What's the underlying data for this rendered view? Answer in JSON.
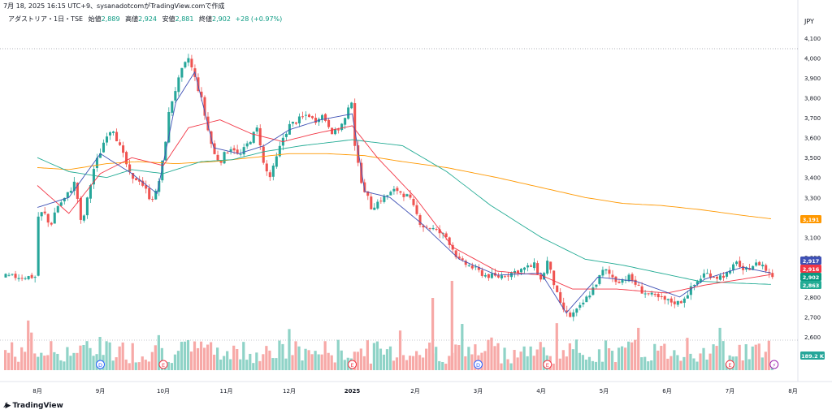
{
  "header": {
    "text": "7月 18, 2025 16:15 UTC+9、sysanadotcomがTradingView.comで作成"
  },
  "legend": {
    "symbol": "アダストリア・1日・TSE",
    "open_label": "始値",
    "open": "2,889",
    "high_label": "高値",
    "high": "2,924",
    "low_label": "安値",
    "low": "2,881",
    "close_label": "終値",
    "close": "2,902",
    "change": "+28 (+0.97%)"
  },
  "currency": "JPY",
  "brand": "TradingView",
  "colors": {
    "up": "#26a69a",
    "down": "#ef5350",
    "ma_short": "#3f51b5",
    "ma_mid": "#f23645",
    "ma_long": "#22ab94",
    "ma_xl": "#ff9800"
  },
  "chart_data": {
    "type": "candlestick",
    "yaxis_ticks": [
      "4,100",
      "4,000",
      "3,900",
      "3,800",
      "3,700",
      "3,600",
      "3,500",
      "3,400",
      "3,300",
      "3,200",
      "3,100",
      "3,000",
      "2,900",
      "2,800",
      "2,700",
      "2,600"
    ],
    "ylim": [
      2590,
      4115
    ],
    "xaxis_labels": [
      "8月",
      "9月",
      "10月",
      "11月",
      "12月",
      "2025",
      "2月",
      "3月",
      "4月",
      "5月",
      "6月",
      "7月",
      "8月"
    ],
    "price_tags": [
      {
        "label": "3,191",
        "color": "#ff9800",
        "value": 3191
      },
      {
        "label": "2,917",
        "color": "#3f51b5",
        "value": 2917
      },
      {
        "label": "2,916",
        "color": "#f23645",
        "value": 2916
      },
      {
        "label": "2,902",
        "color": "#089981",
        "value": 2902
      },
      {
        "label": "2,863",
        "color": "#22ab94",
        "value": 2863
      }
    ],
    "volume_tag": "189.2 K",
    "dotted_high_line": 4055,
    "event_markers": [
      {
        "x_label_index": 1.0,
        "kind": "D"
      },
      {
        "x_label_index": 2.0,
        "kind": "E"
      },
      {
        "x_label_index": 5.0,
        "kind": "E"
      },
      {
        "x_label_index": 7.0,
        "kind": "D"
      },
      {
        "x_label_index": 8.1,
        "kind": "E"
      },
      {
        "x_label_index": 11.0,
        "kind": "E"
      },
      {
        "x_label_index": 11.7,
        "kind": "⚡"
      }
    ],
    "price_path": [
      [
        0,
        3200
      ],
      [
        0.1,
        3230
      ],
      [
        0.2,
        3150
      ],
      [
        0.3,
        3250
      ],
      [
        0.45,
        3300
      ],
      [
        0.6,
        3380
      ],
      [
        0.7,
        3150
      ],
      [
        0.8,
        3300
      ],
      [
        0.9,
        3450
      ],
      [
        1.0,
        3530
      ],
      [
        1.1,
        3620
      ],
      [
        1.2,
        3650
      ],
      [
        1.3,
        3560
      ],
      [
        1.4,
        3480
      ],
      [
        1.5,
        3380
      ],
      [
        1.6,
        3400
      ],
      [
        1.7,
        3350
      ],
      [
        1.8,
        3290
      ],
      [
        1.9,
        3330
      ],
      [
        2.0,
        3500
      ],
      [
        2.1,
        3750
      ],
      [
        2.2,
        3850
      ],
      [
        2.3,
        3940
      ],
      [
        2.4,
        4000
      ],
      [
        2.5,
        3900
      ],
      [
        2.6,
        3800
      ],
      [
        2.7,
        3650
      ],
      [
        2.8,
        3520
      ],
      [
        2.9,
        3480
      ],
      [
        3.0,
        3530
      ],
      [
        3.1,
        3560
      ],
      [
        3.2,
        3500
      ],
      [
        3.3,
        3550
      ],
      [
        3.4,
        3600
      ],
      [
        3.5,
        3650
      ],
      [
        3.6,
        3450
      ],
      [
        3.7,
        3400
      ],
      [
        3.8,
        3500
      ],
      [
        3.9,
        3600
      ],
      [
        4.0,
        3660
      ],
      [
        4.1,
        3680
      ],
      [
        4.2,
        3700
      ],
      [
        4.3,
        3720
      ],
      [
        4.4,
        3680
      ],
      [
        4.5,
        3720
      ],
      [
        4.6,
        3680
      ],
      [
        4.7,
        3620
      ],
      [
        4.8,
        3650
      ],
      [
        4.9,
        3700
      ],
      [
        5.0,
        3800
      ],
      [
        5.05,
        3520
      ],
      [
        5.15,
        3380
      ],
      [
        5.3,
        3250
      ],
      [
        5.5,
        3300
      ],
      [
        5.7,
        3340
      ],
      [
        5.9,
        3300
      ],
      [
        6.1,
        3160
      ],
      [
        6.3,
        3140
      ],
      [
        6.5,
        3100
      ],
      [
        6.7,
        2980
      ],
      [
        6.9,
        2950
      ],
      [
        7.1,
        2910
      ],
      [
        7.3,
        2900
      ],
      [
        7.5,
        2920
      ],
      [
        7.7,
        2940
      ],
      [
        7.9,
        2960
      ],
      [
        8.0,
        2880
      ],
      [
        8.1,
        2980
      ],
      [
        8.2,
        2870
      ],
      [
        8.3,
        2760
      ],
      [
        8.45,
        2700
      ],
      [
        8.6,
        2740
      ],
      [
        8.8,
        2830
      ],
      [
        9.0,
        2940
      ],
      [
        9.2,
        2880
      ],
      [
        9.4,
        2900
      ],
      [
        9.6,
        2830
      ],
      [
        9.8,
        2800
      ],
      [
        10.0,
        2780
      ],
      [
        10.2,
        2770
      ],
      [
        10.4,
        2850
      ],
      [
        10.6,
        2920
      ],
      [
        10.8,
        2900
      ],
      [
        11.0,
        2920
      ],
      [
        11.1,
        2990
      ],
      [
        11.2,
        2920
      ],
      [
        11.35,
        2960
      ],
      [
        11.5,
        2970
      ],
      [
        11.6,
        2920
      ],
      [
        11.7,
        2902
      ]
    ],
    "ma_short_path": [
      [
        0,
        3250
      ],
      [
        0.5,
        3300
      ],
      [
        1,
        3520
      ],
      [
        1.5,
        3420
      ],
      [
        1.9,
        3320
      ],
      [
        2.2,
        3780
      ],
      [
        2.5,
        3930
      ],
      [
        2.8,
        3550
      ],
      [
        3.2,
        3520
      ],
      [
        3.6,
        3560
      ],
      [
        4.0,
        3640
      ],
      [
        4.5,
        3690
      ],
      [
        5.0,
        3720
      ],
      [
        5.2,
        3330
      ],
      [
        5.6,
        3300
      ],
      [
        6.1,
        3170
      ],
      [
        6.7,
        2990
      ],
      [
        7.3,
        2910
      ],
      [
        8.0,
        2920
      ],
      [
        8.4,
        2720
      ],
      [
        8.9,
        2900
      ],
      [
        9.5,
        2880
      ],
      [
        10.2,
        2800
      ],
      [
        10.6,
        2890
      ],
      [
        11.2,
        2950
      ],
      [
        11.7,
        2917
      ]
    ],
    "ma_mid_path": [
      [
        0,
        3360
      ],
      [
        0.5,
        3220
      ],
      [
        1,
        3420
      ],
      [
        1.5,
        3500
      ],
      [
        2,
        3460
      ],
      [
        2.4,
        3650
      ],
      [
        2.9,
        3690
      ],
      [
        3.4,
        3620
      ],
      [
        3.9,
        3580
      ],
      [
        4.4,
        3620
      ],
      [
        5.0,
        3660
      ],
      [
        5.4,
        3500
      ],
      [
        6.0,
        3300
      ],
      [
        6.6,
        3050
      ],
      [
        7.3,
        2930
      ],
      [
        8.0,
        2910
      ],
      [
        8.5,
        2840
      ],
      [
        9.2,
        2840
      ],
      [
        10.0,
        2820
      ],
      [
        10.6,
        2860
      ],
      [
        11.2,
        2890
      ],
      [
        11.7,
        2916
      ]
    ],
    "ma_long_path": [
      [
        0,
        3500
      ],
      [
        0.5,
        3430
      ],
      [
        1.1,
        3400
      ],
      [
        1.5,
        3440
      ],
      [
        2.0,
        3420
      ],
      [
        2.6,
        3480
      ],
      [
        3.1,
        3490
      ],
      [
        3.6,
        3530
      ],
      [
        4.2,
        3560
      ],
      [
        5.0,
        3590
      ],
      [
        5.8,
        3560
      ],
      [
        6.5,
        3430
      ],
      [
        7.2,
        3260
      ],
      [
        8.0,
        3100
      ],
      [
        8.7,
        2990
      ],
      [
        9.3,
        2960
      ],
      [
        9.9,
        2920
      ],
      [
        10.5,
        2880
      ],
      [
        11.1,
        2870
      ],
      [
        11.7,
        2863
      ]
    ],
    "ma_xl_path": [
      [
        0,
        3450
      ],
      [
        0.5,
        3440
      ],
      [
        1.1,
        3470
      ],
      [
        1.6,
        3480
      ],
      [
        2.2,
        3470
      ],
      [
        2.8,
        3480
      ],
      [
        3.4,
        3500
      ],
      [
        4.0,
        3520
      ],
      [
        4.6,
        3520
      ],
      [
        5.2,
        3510
      ],
      [
        5.8,
        3480
      ],
      [
        6.5,
        3450
      ],
      [
        7.3,
        3400
      ],
      [
        8.0,
        3350
      ],
      [
        8.7,
        3300
      ],
      [
        9.3,
        3270
      ],
      [
        9.9,
        3260
      ],
      [
        10.5,
        3240
      ],
      [
        11.2,
        3210
      ],
      [
        11.7,
        3191
      ]
    ]
  }
}
